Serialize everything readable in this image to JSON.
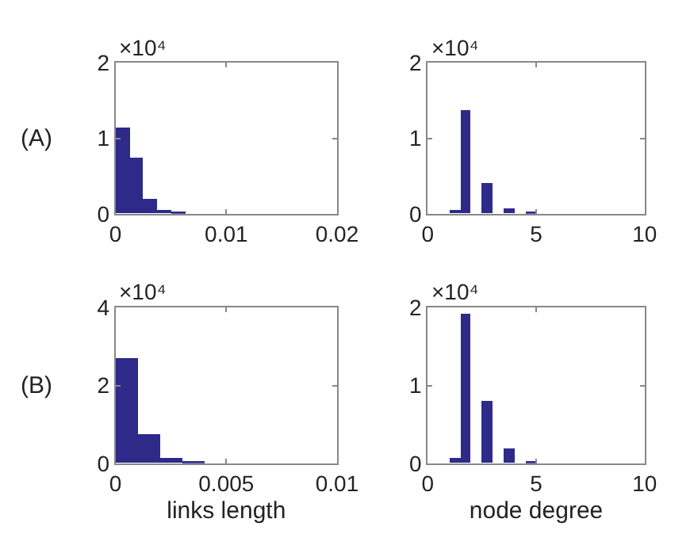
{
  "chart_data": [
    {
      "type": "histogram",
      "title": "(A)",
      "annotations": [
        "×10⁴"
      ],
      "color": "#2e2a8a",
      "bins": [
        0,
        0.00125,
        0.0025,
        0.00375,
        0.005,
        0.00625
      ],
      "values": [
        1.13,
        0.75,
        0.19,
        0.05,
        0.01
      ],
      "xlim": [
        0,
        0.02
      ],
      "xticks": [
        0,
        0.01,
        0.02
      ],
      "ylim": [
        0,
        2
      ],
      "yticks": [
        0,
        1,
        2
      ]
    },
    {
      "type": "histogram",
      "annotations": [
        "×10⁴"
      ],
      "color": "#2e2a8a",
      "bins": [
        1,
        1.5,
        2,
        2.5,
        3,
        3.5,
        4,
        4.5,
        5
      ],
      "values": [
        0.05,
        1.37,
        0,
        0.4,
        0,
        0.06,
        0,
        0.01
      ],
      "xlim": [
        0,
        10
      ],
      "xticks": [
        0,
        5,
        10
      ],
      "ylim": [
        0,
        2
      ],
      "yticks": [
        0,
        1,
        2
      ]
    },
    {
      "type": "histogram",
      "title": "(B)",
      "annotations": [
        "×10⁴"
      ],
      "xlabel": "links length",
      "color": "#2e2a8a",
      "bins": [
        0,
        0.001,
        0.002,
        0.003,
        0.004
      ],
      "values": [
        2.7,
        0.74,
        0.13,
        0.03
      ],
      "xlim": [
        0,
        0.01
      ],
      "xticks": [
        0,
        0.005,
        0.01
      ],
      "ylim": [
        0,
        4
      ],
      "yticks": [
        0,
        2,
        4
      ]
    },
    {
      "type": "histogram",
      "annotations": [
        "×10⁴"
      ],
      "xlabel": "node degree",
      "color": "#2e2a8a",
      "bins": [
        1,
        1.5,
        2,
        2.5,
        3,
        3.5,
        4,
        4.5,
        5
      ],
      "values": [
        0.06,
        1.92,
        0,
        0.79,
        0,
        0.19,
        0,
        0.01
      ],
      "xlim": [
        0,
        10
      ],
      "xticks": [
        0,
        5,
        10
      ],
      "ylim": [
        0,
        2
      ],
      "yticks": [
        0,
        1,
        2
      ]
    }
  ]
}
